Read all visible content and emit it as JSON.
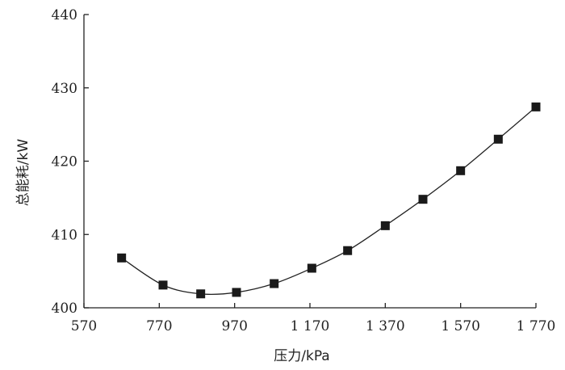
{
  "chart_data": {
    "type": "scatter",
    "title": "",
    "xlabel": "压力/kPa",
    "ylabel": "总能耗/kW",
    "xlim": [
      570,
      1770
    ],
    "ylim": [
      400,
      440
    ],
    "x_ticks": [
      570,
      770,
      970,
      1170,
      1370,
      1570,
      1770
    ],
    "x_tick_labels": [
      "570",
      "770",
      "970",
      "1 170",
      "1 370",
      "1 570",
      "1 770"
    ],
    "y_ticks": [
      400,
      410,
      420,
      430,
      440
    ],
    "y_tick_labels": [
      "400",
      "410",
      "420",
      "430",
      "440"
    ],
    "grid": false,
    "legend": "none",
    "marker": "square",
    "trendline": "smooth curve through points",
    "series": [
      {
        "x": [
          670,
          780,
          880,
          975,
          1075,
          1175,
          1270,
          1370,
          1470,
          1570,
          1670,
          1770
        ],
        "y": [
          406.8,
          403.1,
          401.9,
          402.1,
          403.3,
          405.4,
          407.8,
          411.2,
          414.8,
          418.7,
          423.0,
          427.4
        ]
      }
    ]
  }
}
